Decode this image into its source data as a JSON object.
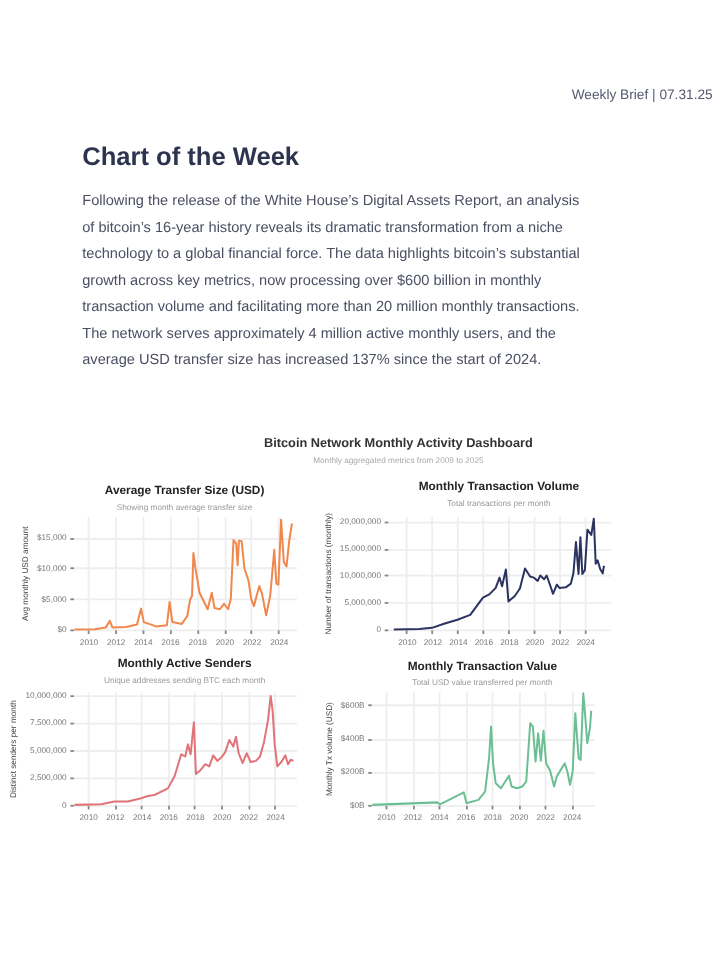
{
  "chart_data": [
    {
      "type": "other",
      "title": "Chart of the Week",
      "annotations": [
        "Weekly Brief | 07.31.25",
        "Following the release of the White House’s Digital Assets Report, an analysis",
        "of bitcoin’s 16-year history reveals its dramatic transformation from a niche",
        "technology to a global financial force. The data highlights bitcoin’s substantial",
        "growth across key metrics, now processing over $600 billion in monthly",
        "transaction volume and facilitating more than 20 million monthly transactions.",
        "The network serves approximately 4 million active monthly users, and the",
        "average USD transfer size has increased 137% since the start of 2024.",
        "Bitcoin Network Monthly Activity Dashboard",
        "Monthly aggregated metrics from 2009 to 2025"
      ]
    },
    {
      "type": "line",
      "title": "Average Transfer Size (USD)",
      "subtitle": "Showing month average transfer size",
      "ylabel": "Avg monthly USD amount",
      "grid": true,
      "xlim": [
        2008.9,
        2025.3
      ],
      "xticks": [
        2010,
        2012,
        2014,
        2016,
        2018,
        2020,
        2022,
        2024
      ],
      "ylim": [
        0,
        18500
      ],
      "yticks": [
        {
          "value": 0,
          "label": "$0"
        },
        {
          "value": 5000,
          "label": "$5,000"
        },
        {
          "value": 10000,
          "label": "$10,000"
        },
        {
          "value": 15000,
          "label": "$15,000"
        }
      ],
      "x": [
        2009.0,
        2010.5,
        2011.3,
        2011.6,
        2011.8,
        2012.8,
        2013.6,
        2013.9,
        2014.1,
        2015.0,
        2015.8,
        2016.0,
        2016.2,
        2016.9,
        2017.3,
        2017.5,
        2017.65,
        2017.75,
        2017.9,
        2018.2,
        2018.8,
        2019.1,
        2019.3,
        2019.7,
        2020.0,
        2020.3,
        2020.5,
        2020.7,
        2020.9,
        2021.0,
        2021.1,
        2021.3,
        2021.5,
        2021.8,
        2022.0,
        2022.2,
        2022.4,
        2022.6,
        2022.8,
        2023.1,
        2023.4,
        2023.7,
        2023.85,
        2024.0,
        2024.2,
        2024.4,
        2024.6,
        2024.8,
        2025.0
      ],
      "series": [
        {
          "color": "#f0884e",
          "values": [
            0,
            50,
            300,
            1400,
            300,
            400,
            800,
            3400,
            1200,
            500,
            700,
            4500,
            1200,
            900,
            2200,
            4800,
            5500,
            12500,
            10000,
            6000,
            3300,
            6000,
            3500,
            3300,
            4200,
            3300,
            5000,
            14600,
            14000,
            10500,
            14500,
            14400,
            10000,
            8000,
            5000,
            3800,
            5500,
            7100,
            5800,
            2300,
            5500,
            13000,
            7500,
            7300,
            17900,
            11000,
            10300,
            14500,
            17300
          ]
        }
      ]
    },
    {
      "type": "line",
      "title": "Monthly Transaction Volume",
      "subtitle": "Total transactions per month",
      "ylabel": "Number of transactions (monthly)",
      "grid": true,
      "xlim": [
        2008.5,
        2026
      ],
      "xticks": [
        2010,
        2012,
        2014,
        2016,
        2018,
        2020,
        2022,
        2024
      ],
      "ylim": [
        0,
        21000000
      ],
      "yticks": [
        0,
        {
          "value": 5000000,
          "label": "5,000,000"
        },
        {
          "value": 10000000,
          "label": "10,000,000"
        },
        {
          "value": 15000000,
          "label": "15,000,000"
        },
        {
          "value": 20000000,
          "label": "20,000,000"
        }
      ],
      "x": [
        2009.0,
        2011.0,
        2012.0,
        2013.0,
        2014.0,
        2015.0,
        2016.0,
        2016.5,
        2017.0,
        2017.3,
        2017.5,
        2017.8,
        2018.0,
        2018.5,
        2018.9,
        2019.3,
        2019.7,
        2020.0,
        2020.3,
        2020.5,
        2020.8,
        2021.0,
        2021.3,
        2021.5,
        2021.8,
        2022.0,
        2022.5,
        2022.9,
        2023.1,
        2023.3,
        2023.5,
        2023.65,
        2023.8,
        2024.0,
        2024.2,
        2024.5,
        2024.7,
        2024.85,
        2025.0,
        2025.2,
        2025.4,
        2025.5
      ],
      "series": [
        {
          "color": "#2b3460",
          "values": [
            0,
            100000,
            300000,
            1100000,
            1800000,
            2700000,
            5900000,
            6500000,
            7700000,
            9600000,
            8000000,
            11100000,
            5200000,
            6200000,
            7600000,
            11300000,
            9800000,
            9600000,
            9000000,
            10000000,
            9300000,
            10000000,
            8000000,
            6600000,
            8300000,
            7700000,
            7800000,
            8500000,
            10400000,
            16200000,
            10300000,
            17100000,
            10300000,
            11000000,
            18500000,
            17500000,
            20500000,
            12200000,
            12800000,
            11200000,
            10400000,
            11800000
          ]
        }
      ]
    },
    {
      "type": "line",
      "title": "Monthly Active Senders",
      "subtitle": "Unique addresses sending BTC each month",
      "ylabel": "Distinct senders per month",
      "grid": true,
      "xlim": [
        2008.9,
        2025.6
      ],
      "xticks": [
        2010,
        2012,
        2014,
        2016,
        2018,
        2020,
        2022,
        2024
      ],
      "ylim": [
        0,
        10300000
      ],
      "yticks": [
        0,
        {
          "value": 2500000,
          "label": "2,500,000"
        },
        {
          "value": 5000000,
          "label": "5,000,000"
        },
        {
          "value": 7500000,
          "label": "7,500,000"
        },
        {
          "value": 10000000,
          "label": "10,000,000"
        }
      ],
      "x": [
        2009.0,
        2011.0,
        2012.0,
        2013.0,
        2014.0,
        2014.5,
        2015.0,
        2016.0,
        2016.5,
        2017.0,
        2017.3,
        2017.5,
        2017.7,
        2017.95,
        2018.1,
        2018.4,
        2018.8,
        2019.1,
        2019.4,
        2019.7,
        2020.0,
        2020.3,
        2020.6,
        2020.9,
        2021.1,
        2021.3,
        2021.6,
        2021.9,
        2022.2,
        2022.6,
        2022.9,
        2023.2,
        2023.5,
        2023.7,
        2023.85,
        2024.0,
        2024.2,
        2024.5,
        2024.8,
        2025.0,
        2025.2,
        2025.4
      ],
      "series": [
        {
          "color": "#e07479",
          "values": [
            0,
            50000,
            300000,
            300000,
            600000,
            800000,
            900000,
            1500000,
            2600000,
            4600000,
            4400000,
            5500000,
            4600000,
            7500000,
            2800000,
            3100000,
            3700000,
            3500000,
            4500000,
            4000000,
            4300000,
            4800000,
            5900000,
            5300000,
            6200000,
            4700000,
            3800000,
            4700000,
            3900000,
            4000000,
            4400000,
            5700000,
            7700000,
            9900000,
            8500000,
            5500000,
            3500000,
            3900000,
            4500000,
            3700000,
            4100000,
            4000000
          ]
        }
      ]
    },
    {
      "type": "line",
      "title": "Monthly Transaction Value",
      "subtitle": "Total USD value transferred per month",
      "ylabel": "Monthly Tx volume (USD)",
      "grid": true,
      "xlim": [
        2008.9,
        2025.7
      ],
      "xticks": [
        2010,
        2012,
        2014,
        2016,
        2018,
        2020,
        2022,
        2024
      ],
      "ylim": [
        0,
        680
      ],
      "yticks": [
        {
          "value": 0,
          "label": "$0B"
        },
        {
          "value": 200,
          "label": "$200B"
        },
        {
          "value": 400,
          "label": "$400B"
        },
        {
          "value": 600,
          "label": "$600B"
        }
      ],
      "x": [
        2009.0,
        2013.9,
        2014.1,
        2015.9,
        2016.1,
        2017.0,
        2017.5,
        2017.8,
        2017.95,
        2018.1,
        2018.3,
        2018.7,
        2019.3,
        2019.5,
        2019.9,
        2020.3,
        2020.6,
        2020.9,
        2021.1,
        2021.3,
        2021.5,
        2021.7,
        2021.9,
        2022.1,
        2022.4,
        2022.7,
        2022.9,
        2023.2,
        2023.5,
        2023.7,
        2023.9,
        2024.1,
        2024.3,
        2024.55,
        2024.7,
        2024.9,
        2025.05,
        2025.2,
        2025.4,
        2025.5
      ],
      "series": [
        {
          "color": "#6cbf93",
          "values": [
            0,
            15,
            3,
            75,
            10,
            30,
            80,
            280,
            470,
            250,
            130,
            100,
            175,
            110,
            100,
            110,
            140,
            490,
            470,
            260,
            430,
            265,
            445,
            250,
            205,
            110,
            170,
            210,
            250,
            200,
            120,
            200,
            550,
            280,
            270,
            670,
            530,
            370,
            460,
            565
          ]
        }
      ]
    }
  ]
}
